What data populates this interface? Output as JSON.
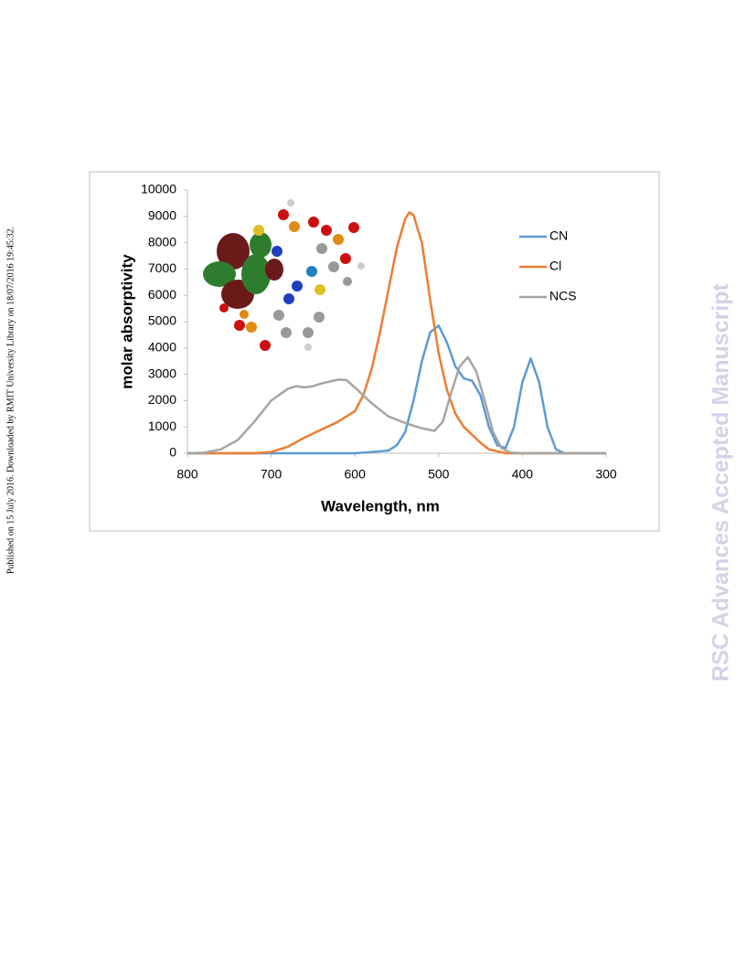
{
  "sidebar": "Published on 15 July 2016. Downloaded by RMIT University Library on 18/07/2016 19:45:32.",
  "watermark": "RSC Advances Accepted Manuscript",
  "chart_data": {
    "type": "line",
    "x_label": "Wavelength, nm",
    "y_label": "molar absorptivity",
    "xlim": [
      800,
      300
    ],
    "xticks": [
      800,
      700,
      600,
      500,
      400,
      300
    ],
    "ylim": [
      0,
      10000
    ],
    "yticks": [
      0,
      1000,
      2000,
      3000,
      4000,
      5000,
      6000,
      7000,
      8000,
      9000,
      10000
    ],
    "legend": "upper right",
    "series": [
      {
        "name": "CN",
        "color": "#5b9bd5",
        "x": [
          800,
          600,
          580,
          560,
          550,
          540,
          530,
          520,
          510,
          500,
          490,
          480,
          470,
          460,
          450,
          440,
          430,
          420,
          410,
          400,
          390,
          380,
          370,
          360,
          350,
          300
        ],
        "values": [
          0,
          0,
          50,
          100,
          300,
          800,
          2000,
          3500,
          4600,
          4850,
          4200,
          3300,
          2850,
          2750,
          2200,
          1000,
          300,
          200,
          1000,
          2700,
          3600,
          2700,
          1000,
          150,
          0,
          0
        ]
      },
      {
        "name": "Cl",
        "color": "#ed7d31",
        "x": [
          800,
          720,
          700,
          680,
          660,
          640,
          620,
          600,
          590,
          580,
          570,
          560,
          550,
          540,
          535,
          530,
          520,
          510,
          500,
          490,
          480,
          470,
          460,
          450,
          440,
          420,
          300
        ],
        "values": [
          0,
          0,
          50,
          250,
          600,
          900,
          1200,
          1600,
          2200,
          3200,
          4600,
          6200,
          7800,
          8900,
          9150,
          9050,
          8000,
          5800,
          3800,
          2400,
          1500,
          1000,
          700,
          400,
          150,
          0,
          0
        ]
      },
      {
        "name": "NCS",
        "color": "#a5a5a5",
        "x": [
          800,
          780,
          760,
          740,
          720,
          700,
          680,
          670,
          660,
          650,
          640,
          620,
          610,
          600,
          580,
          560,
          540,
          520,
          505,
          495,
          485,
          475,
          465,
          455,
          445,
          435,
          425,
          415,
          400,
          300
        ],
        "values": [
          0,
          20,
          150,
          500,
          1200,
          2000,
          2450,
          2550,
          2500,
          2550,
          2650,
          2800,
          2780,
          2500,
          1900,
          1400,
          1150,
          950,
          850,
          1200,
          2300,
          3300,
          3650,
          3100,
          2000,
          800,
          200,
          30,
          0,
          0
        ]
      }
    ]
  }
}
